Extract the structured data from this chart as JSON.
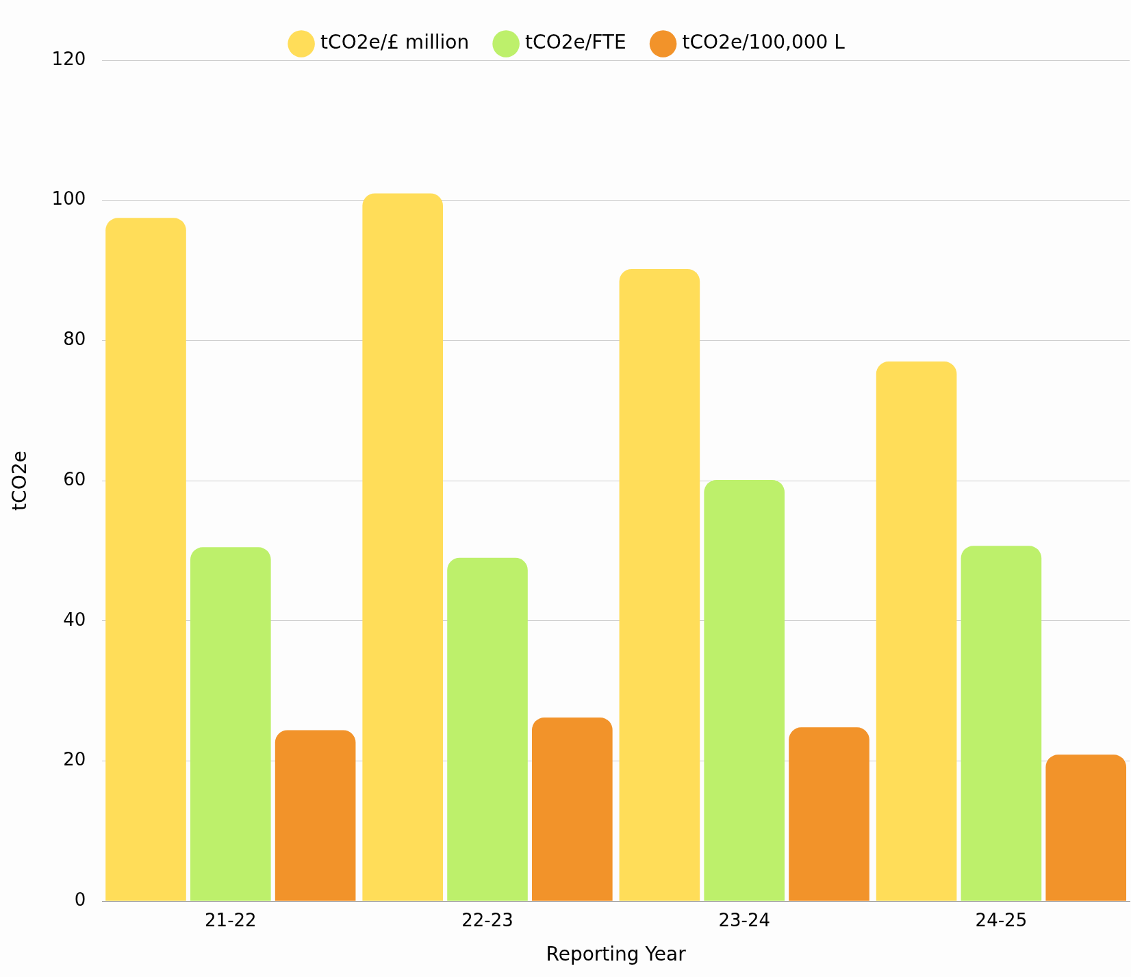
{
  "chart_data": {
    "type": "bar",
    "xlabel": "Reporting Year",
    "ylabel": "tCO2e",
    "categories": [
      "21-22",
      "22-23",
      "23-24",
      "24-25"
    ],
    "series": [
      {
        "name": "tCO2e/£ million",
        "color": "#ffdd59",
        "values": [
          97.5,
          101,
          90.2,
          77
        ]
      },
      {
        "name": "tCO2e/FTE",
        "color": "#bdf06b",
        "values": [
          50.5,
          49,
          60.1,
          50.7
        ]
      },
      {
        "name": "tCO2e/100,000 L",
        "color": "#f2932a",
        "values": [
          24.4,
          26.2,
          24.8,
          20.9
        ]
      }
    ],
    "ylim": [
      0,
      120
    ],
    "yticks": [
      0,
      20,
      40,
      60,
      80,
      100,
      120
    ],
    "grid": "y",
    "legend": "top"
  }
}
